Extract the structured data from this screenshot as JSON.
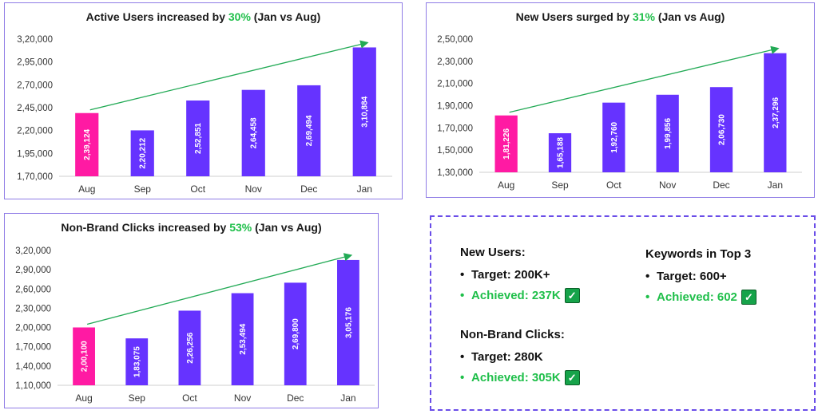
{
  "chart_data": [
    {
      "type": "bar",
      "title_prefix": "Active Users increased by ",
      "title_highlight": "30%",
      "title_suffix": " (Jan vs Aug)",
      "categories": [
        "Aug",
        "Sep",
        "Oct",
        "Nov",
        "Dec",
        "Jan"
      ],
      "values": [
        239124,
        220212,
        252851,
        264458,
        269494,
        310884
      ],
      "value_labels": [
        "2,39,124",
        "2,20,212",
        "2,52,851",
        "2,64,458",
        "2,69,494",
        "3,10,884"
      ],
      "ylim": [
        170000,
        320000
      ],
      "yticks": [
        170000,
        195000,
        220000,
        245000,
        270000,
        295000,
        320000
      ],
      "ytick_labels": [
        "1,70,000",
        "1,95,000",
        "2,20,000",
        "2,45,000",
        "2,70,000",
        "2,95,000",
        "3,20,000"
      ],
      "highlight_category": "Aug",
      "colors": {
        "bar": "#6633ff",
        "highlight": "#ff1aa3",
        "trend_arrow": "#22aa55"
      },
      "grid": false,
      "trend_arrow": true
    },
    {
      "type": "bar",
      "title_prefix": "New Users surged by ",
      "title_highlight": "31%",
      "title_suffix": " (Jan vs Aug)",
      "categories": [
        "Aug",
        "Sep",
        "Oct",
        "Nov",
        "Dec",
        "Jan"
      ],
      "values": [
        181226,
        165188,
        192760,
        199856,
        206730,
        237296
      ],
      "value_labels": [
        "1,81,226",
        "1,65,188",
        "1,92,760",
        "1,99,856",
        "2,06,730",
        "2,37,296"
      ],
      "ylim": [
        130000,
        250000
      ],
      "yticks": [
        130000,
        150000,
        170000,
        190000,
        210000,
        230000,
        250000
      ],
      "ytick_labels": [
        "1,30,000",
        "1,50,000",
        "1,70,000",
        "1,90,000",
        "2,10,000",
        "2,30,000",
        "2,50,000"
      ],
      "highlight_category": "Aug",
      "colors": {
        "bar": "#6633ff",
        "highlight": "#ff1aa3",
        "trend_arrow": "#22aa55"
      },
      "grid": false,
      "trend_arrow": true
    },
    {
      "type": "bar",
      "title_prefix": "Non-Brand Clicks increased by ",
      "title_highlight": "53%",
      "title_suffix": " (Jan vs Aug)",
      "categories": [
        "Aug",
        "Sep",
        "Oct",
        "Nov",
        "Dec",
        "Jan"
      ],
      "values": [
        200100,
        183075,
        226256,
        253494,
        269800,
        305176
      ],
      "value_labels": [
        "2,00,100",
        "1,83,075",
        "2,26,256",
        "2,53,494",
        "2,69,800",
        "3,05,176"
      ],
      "ylim": [
        110000,
        320000
      ],
      "yticks": [
        110000,
        140000,
        170000,
        200000,
        230000,
        260000,
        290000,
        320000
      ],
      "ytick_labels": [
        "1,10,000",
        "1,40,000",
        "1,70,000",
        "2,00,000",
        "2,30,000",
        "2,60,000",
        "2,90,000",
        "3,20,000"
      ],
      "highlight_category": "Aug",
      "colors": {
        "bar": "#6633ff",
        "highlight": "#ff1aa3",
        "trend_arrow": "#22aa55"
      },
      "grid": false,
      "trend_arrow": true
    }
  ],
  "summary": {
    "new_users": {
      "heading": "New Users:",
      "target": "Target: 200K+",
      "achieved": "Achieved: 237K"
    },
    "keywords": {
      "heading": "Keywords in Top 3",
      "target": "Target: 600+",
      "achieved": "Achieved: 602"
    },
    "non_brand": {
      "heading": "Non-Brand Clicks:",
      "target": "Target: 280K",
      "achieved": "Achieved: 305K"
    },
    "bullet": "•",
    "check_glyph": "✓",
    "colors": {
      "achieved": "#1fbf4a",
      "check_bg": "#16a34a",
      "border": "#6a4de8"
    }
  }
}
